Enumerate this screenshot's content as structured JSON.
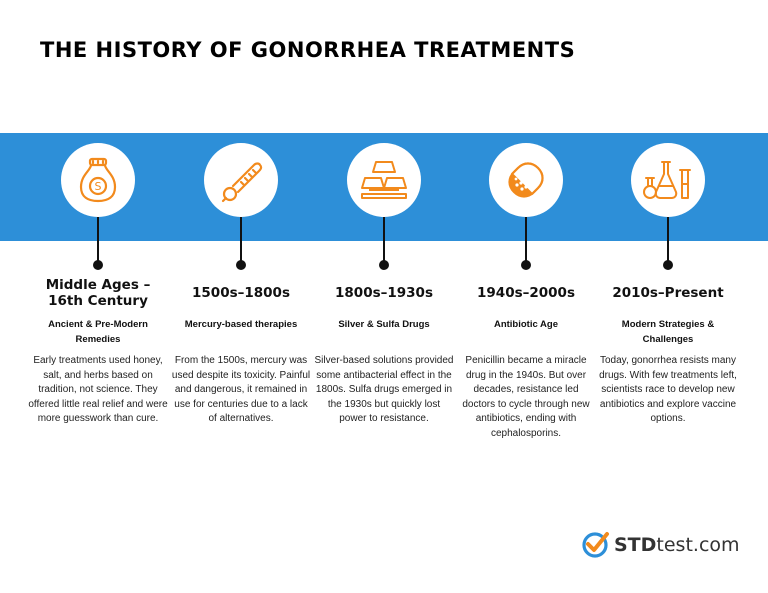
{
  "title": "THE HISTORY OF GONORRHEA TREATMENTS",
  "colors": {
    "band": "#2d8fd8",
    "icon": "#f28a1c",
    "dot": "#111111"
  },
  "timeline": [
    {
      "icon": "money-bag-icon",
      "era": "Middle Ages – 16th Century",
      "subtitle": "Ancient & Pre-Modern Remedies",
      "description": "Early treatments used honey, salt, and herbs based on tradition, not science. They offered little real relief and were more guesswork than cure."
    },
    {
      "icon": "thermometer-icon",
      "era": "1500s–1800s",
      "subtitle": "Mercury-based therapies",
      "description": "From the 1500s, mercury was used despite its toxicity. Painful and dangerous, it remained in use for centuries due to a lack of alternatives."
    },
    {
      "icon": "silver-bars-icon",
      "era": "1800s–1930s",
      "subtitle": "Silver & Sulfa Drugs",
      "description": "Silver-based solutions provided some antibacterial effect in the 1800s. Sulfa drugs emerged in the 1930s but quickly lost power to resistance."
    },
    {
      "icon": "pill-capsule-icon",
      "era": "1940s–2000s",
      "subtitle": "Antibiotic Age",
      "description": "Penicillin became a miracle drug in the 1940s. But over decades, resistance led doctors to cycle through new antibiotics, ending with cephalosporins."
    },
    {
      "icon": "lab-flasks-icon",
      "era": "2010s–Present",
      "subtitle": "Modern Strategies & Challenges",
      "description": "Today, gonorrhea resists many drugs. With few treatments left, scientists race to develop new antibiotics and explore vaccine options."
    }
  ],
  "logo": {
    "bold": "STD",
    "light": "test.com"
  }
}
